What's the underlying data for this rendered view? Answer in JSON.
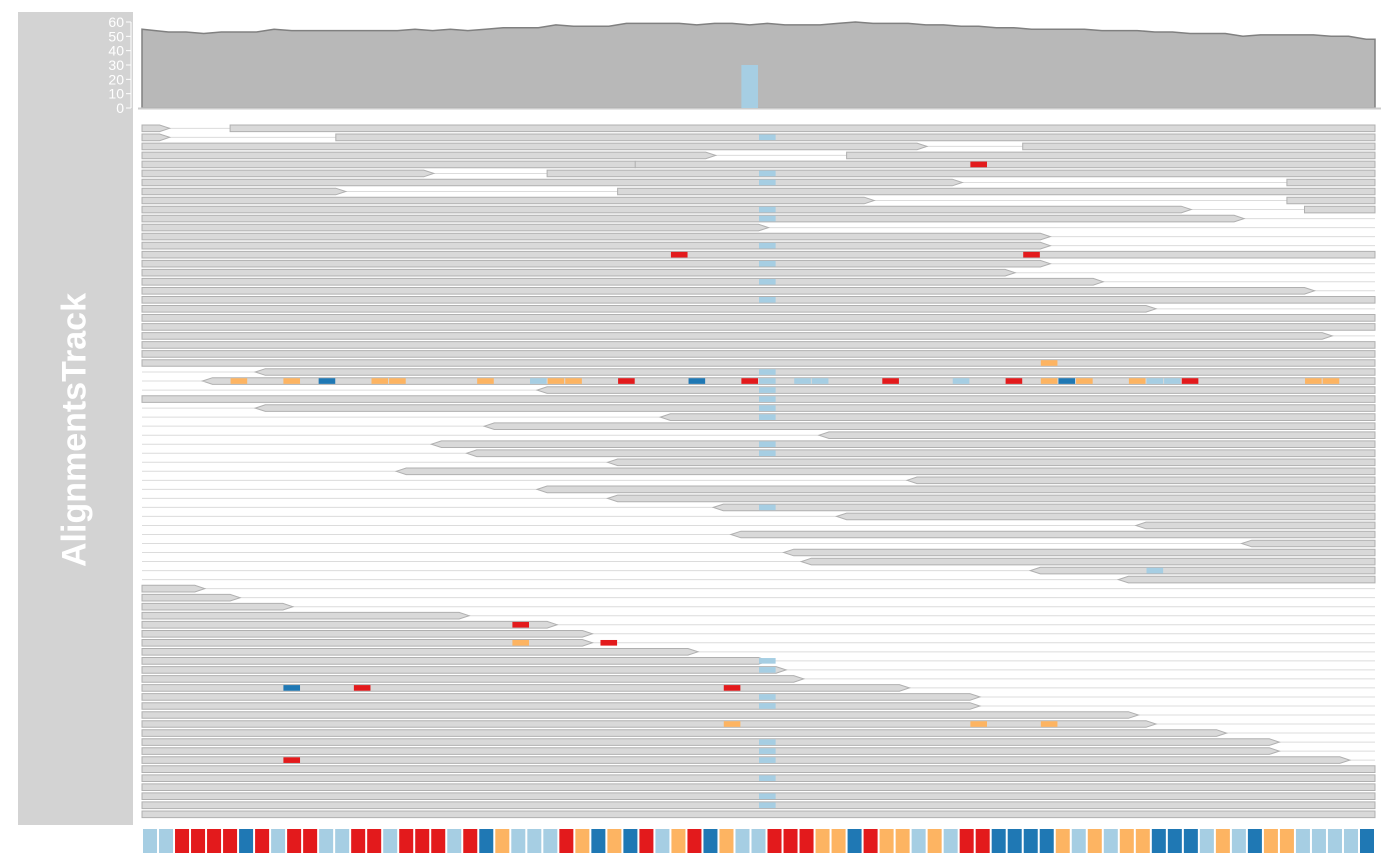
{
  "track": {
    "title": "AlignmentsTrack"
  },
  "colors": {
    "panel": "#d3d3d3",
    "coverage": "#b8b8b8",
    "coverage_line": "#808080",
    "read_fill": "#d9d9d9",
    "read_stroke": "#b0b0b0",
    "A": "#a6cee3",
    "C": "#1f78b4",
    "G": "#fdb462",
    "T": "#e31a1c"
  },
  "chart_data": {
    "type": "area",
    "title": "",
    "xlabel": "",
    "ylabel": "",
    "ylim": [
      0,
      60
    ],
    "yticks": [
      0,
      10,
      20,
      30,
      40,
      50,
      60
    ],
    "positions": 70,
    "coverage": [
      55,
      53,
      53,
      52,
      53,
      53,
      53,
      55,
      54,
      54,
      54,
      54,
      54,
      54,
      54,
      55,
      54,
      55,
      54,
      55,
      56,
      56,
      56,
      58,
      57,
      57,
      57,
      59,
      59,
      59,
      59,
      58,
      59,
      59,
      58,
      59,
      58,
      58,
      58,
      59,
      60,
      59,
      59,
      59,
      58,
      58,
      57,
      57,
      56,
      56,
      55,
      55,
      55,
      55,
      54,
      54,
      54,
      53,
      53,
      52,
      52,
      52,
      50,
      51,
      51,
      51,
      51,
      50,
      50,
      48
    ],
    "mismatch_coverage": [
      {
        "pos": 34,
        "base": "A",
        "value": 30
      }
    ],
    "reference_sequence": "AATTTTCTATTAATTATTTATCGAAATGCGCTAGTCGAATTTGGCTGGAGATTCCCCGAGAGGCCCAGACGGAAAAC",
    "reads": [
      {
        "row": 0,
        "start": 0,
        "end": 1,
        "strand": "+"
      },
      {
        "row": 0,
        "start": 5,
        "end": 70,
        "strand": "+"
      },
      {
        "row": 1,
        "start": 0,
        "end": 1,
        "strand": "+"
      },
      {
        "row": 1,
        "start": 11,
        "end": 70,
        "strand": "+",
        "mm": [
          {
            "pos": 35,
            "base": "A"
          }
        ]
      },
      {
        "row": 2,
        "start": 0,
        "end": 44,
        "strand": "+"
      },
      {
        "row": 2,
        "start": 50,
        "end": 70,
        "strand": "+"
      },
      {
        "row": 3,
        "start": 0,
        "end": 32,
        "strand": "+"
      },
      {
        "row": 3,
        "start": 40,
        "end": 70,
        "strand": "+"
      },
      {
        "row": 4,
        "start": 0,
        "end": 28,
        "strand": "+"
      },
      {
        "row": 4,
        "start": 28,
        "end": 70,
        "strand": "+",
        "mm": [
          {
            "pos": 47,
            "base": "T"
          }
        ]
      },
      {
        "row": 5,
        "start": 0,
        "end": 16,
        "strand": "+"
      },
      {
        "row": 5,
        "start": 23,
        "end": 70,
        "strand": "+",
        "mm": [
          {
            "pos": 35,
            "base": "A"
          }
        ]
      },
      {
        "row": 6,
        "start": 0,
        "end": 46,
        "strand": "+",
        "mm": [
          {
            "pos": 35,
            "base": "A"
          }
        ]
      },
      {
        "row": 6,
        "start": 65,
        "end": 70,
        "strand": "+"
      },
      {
        "row": 7,
        "start": 0,
        "end": 11,
        "strand": "+"
      },
      {
        "row": 7,
        "start": 27,
        "end": 70,
        "strand": "+"
      },
      {
        "row": 8,
        "start": 0,
        "end": 41,
        "strand": "+"
      },
      {
        "row": 8,
        "start": 65,
        "end": 70,
        "strand": "+"
      },
      {
        "row": 9,
        "start": 0,
        "end": 59,
        "strand": "+",
        "mm": [
          {
            "pos": 35,
            "base": "A"
          }
        ]
      },
      {
        "row": 9,
        "start": 66,
        "end": 70,
        "strand": "+"
      },
      {
        "row": 10,
        "start": 0,
        "end": 62,
        "strand": "+",
        "mm": [
          {
            "pos": 35,
            "base": "A"
          }
        ]
      },
      {
        "row": 11,
        "start": 0,
        "end": 35,
        "strand": "+"
      },
      {
        "row": 12,
        "start": 0,
        "end": 51,
        "strand": "+"
      },
      {
        "row": 13,
        "start": 0,
        "end": 51,
        "strand": "+",
        "mm": [
          {
            "pos": 35,
            "base": "A"
          }
        ]
      },
      {
        "row": 14,
        "start": 0,
        "end": 70,
        "strand": "+",
        "mm": [
          {
            "pos": 30,
            "base": "T"
          },
          {
            "pos": 50,
            "base": "T"
          }
        ]
      },
      {
        "row": 15,
        "start": 0,
        "end": 51,
        "strand": "+",
        "mm": [
          {
            "pos": 35,
            "base": "A"
          }
        ]
      },
      {
        "row": 16,
        "start": 0,
        "end": 49,
        "strand": "+"
      },
      {
        "row": 17,
        "start": 0,
        "end": 54,
        "strand": "+",
        "mm": [
          {
            "pos": 35,
            "base": "A"
          }
        ]
      },
      {
        "row": 18,
        "start": 0,
        "end": 66,
        "strand": "+"
      },
      {
        "row": 19,
        "start": 0,
        "end": 70,
        "strand": "+",
        "mm": [
          {
            "pos": 35,
            "base": "A"
          }
        ]
      },
      {
        "row": 20,
        "start": 0,
        "end": 57,
        "strand": "+"
      },
      {
        "row": 21,
        "start": 0,
        "end": 70,
        "strand": "+"
      },
      {
        "row": 22,
        "start": 0,
        "end": 70,
        "strand": "+"
      },
      {
        "row": 23,
        "start": 0,
        "end": 67,
        "strand": "+"
      },
      {
        "row": 24,
        "start": 0,
        "end": 70,
        "strand": "+"
      },
      {
        "row": 25,
        "start": 0,
        "end": 70,
        "strand": "+"
      },
      {
        "row": 26,
        "start": 0,
        "end": 70,
        "strand": "+",
        "mm": [
          {
            "pos": 51,
            "base": "G"
          }
        ]
      },
      {
        "row": 27,
        "start": 7,
        "end": 70,
        "strand": "-",
        "mm": [
          {
            "pos": 35,
            "base": "A"
          }
        ]
      },
      {
        "row": 28,
        "start": 4,
        "end": 70,
        "strand": "-",
        "mm": [
          {
            "pos": 5,
            "base": "G"
          },
          {
            "pos": 8,
            "base": "G"
          },
          {
            "pos": 10,
            "base": "C"
          },
          {
            "pos": 13,
            "base": "G"
          },
          {
            "pos": 14,
            "base": "G"
          },
          {
            "pos": 19,
            "base": "G"
          },
          {
            "pos": 22,
            "base": "A"
          },
          {
            "pos": 23,
            "base": "G"
          },
          {
            "pos": 24,
            "base": "G"
          },
          {
            "pos": 27,
            "base": "T"
          },
          {
            "pos": 31,
            "base": "C"
          },
          {
            "pos": 34,
            "base": "T"
          },
          {
            "pos": 35,
            "base": "A"
          },
          {
            "pos": 37,
            "base": "A"
          },
          {
            "pos": 38,
            "base": "A"
          },
          {
            "pos": 42,
            "base": "T"
          },
          {
            "pos": 46,
            "base": "A"
          },
          {
            "pos": 49,
            "base": "T"
          },
          {
            "pos": 51,
            "base": "G"
          },
          {
            "pos": 52,
            "base": "C"
          },
          {
            "pos": 53,
            "base": "G"
          },
          {
            "pos": 56,
            "base": "G"
          },
          {
            "pos": 57,
            "base": "A"
          },
          {
            "pos": 58,
            "base": "A"
          },
          {
            "pos": 59,
            "base": "T"
          },
          {
            "pos": 66,
            "base": "G"
          },
          {
            "pos": 67,
            "base": "G"
          }
        ]
      },
      {
        "row": 29,
        "start": 23,
        "end": 70,
        "strand": "-",
        "mm": [
          {
            "pos": 35,
            "base": "A"
          }
        ]
      },
      {
        "row": 30,
        "start": 0,
        "end": 70,
        "strand": "+",
        "mm": [
          {
            "pos": 35,
            "base": "A"
          }
        ]
      },
      {
        "row": 31,
        "start": 7,
        "end": 70,
        "strand": "-",
        "mm": [
          {
            "pos": 35,
            "base": "A"
          }
        ]
      },
      {
        "row": 32,
        "start": 30,
        "end": 70,
        "strand": "-",
        "mm": [
          {
            "pos": 35,
            "base": "A"
          }
        ]
      },
      {
        "row": 33,
        "start": 20,
        "end": 70,
        "strand": "-"
      },
      {
        "row": 34,
        "start": 39,
        "end": 70,
        "strand": "-"
      },
      {
        "row": 35,
        "start": 17,
        "end": 70,
        "strand": "-",
        "mm": [
          {
            "pos": 35,
            "base": "A"
          }
        ]
      },
      {
        "row": 36,
        "start": 19,
        "end": 70,
        "strand": "-",
        "mm": [
          {
            "pos": 35,
            "base": "A"
          }
        ]
      },
      {
        "row": 37,
        "start": 27,
        "end": 70,
        "strand": "-"
      },
      {
        "row": 38,
        "start": 15,
        "end": 70,
        "strand": "-"
      },
      {
        "row": 39,
        "start": 44,
        "end": 70,
        "strand": "-"
      },
      {
        "row": 40,
        "start": 23,
        "end": 70,
        "strand": "-"
      },
      {
        "row": 41,
        "start": 27,
        "end": 70,
        "strand": "-"
      },
      {
        "row": 42,
        "start": 33,
        "end": 70,
        "strand": "-",
        "mm": [
          {
            "pos": 35,
            "base": "A"
          }
        ]
      },
      {
        "row": 43,
        "start": 40,
        "end": 70,
        "strand": "-"
      },
      {
        "row": 44,
        "start": 57,
        "end": 70,
        "strand": "-"
      },
      {
        "row": 45,
        "start": 34,
        "end": 70,
        "strand": "-"
      },
      {
        "row": 46,
        "start": 63,
        "end": 70,
        "strand": "-"
      },
      {
        "row": 47,
        "start": 37,
        "end": 70,
        "strand": "-"
      },
      {
        "row": 48,
        "start": 38,
        "end": 70,
        "strand": "-"
      },
      {
        "row": 49,
        "start": 51,
        "end": 70,
        "strand": "-",
        "mm": [
          {
            "pos": 57,
            "base": "A"
          }
        ]
      },
      {
        "row": 50,
        "start": 56,
        "end": 70,
        "strand": "-"
      },
      {
        "row": 51,
        "start": 0,
        "end": 3,
        "strand": "+"
      },
      {
        "row": 52,
        "start": 0,
        "end": 5,
        "strand": "+"
      },
      {
        "row": 53,
        "start": 0,
        "end": 8,
        "strand": "+"
      },
      {
        "row": 54,
        "start": 0,
        "end": 18,
        "strand": "+"
      },
      {
        "row": 55,
        "start": 0,
        "end": 23,
        "strand": "+",
        "mm": [
          {
            "pos": 21,
            "base": "T"
          }
        ]
      },
      {
        "row": 56,
        "start": 0,
        "end": 25,
        "strand": "+"
      },
      {
        "row": 57,
        "start": 0,
        "end": 25,
        "strand": "+",
        "mm": [
          {
            "pos": 21,
            "base": "G"
          },
          {
            "pos": 26,
            "base": "T"
          }
        ]
      },
      {
        "row": 58,
        "start": 0,
        "end": 31,
        "strand": "+"
      },
      {
        "row": 59,
        "start": 0,
        "end": 35,
        "strand": "+",
        "mm": [
          {
            "pos": 35,
            "base": "A"
          }
        ]
      },
      {
        "row": 60,
        "start": 0,
        "end": 36,
        "strand": "+",
        "mm": [
          {
            "pos": 35,
            "base": "A"
          }
        ]
      },
      {
        "row": 61,
        "start": 0,
        "end": 37,
        "strand": "+"
      },
      {
        "row": 62,
        "start": 0,
        "end": 43,
        "strand": "+",
        "mm": [
          {
            "pos": 8,
            "base": "C"
          },
          {
            "pos": 12,
            "base": "T"
          },
          {
            "pos": 33,
            "base": "T"
          }
        ]
      },
      {
        "row": 63,
        "start": 0,
        "end": 47,
        "strand": "+",
        "mm": [
          {
            "pos": 35,
            "base": "A"
          }
        ]
      },
      {
        "row": 64,
        "start": 0,
        "end": 47,
        "strand": "+",
        "mm": [
          {
            "pos": 35,
            "base": "A"
          }
        ]
      },
      {
        "row": 65,
        "start": 0,
        "end": 56,
        "strand": "+"
      },
      {
        "row": 66,
        "start": 0,
        "end": 57,
        "strand": "+",
        "mm": [
          {
            "pos": 33,
            "base": "G"
          },
          {
            "pos": 47,
            "base": "G"
          },
          {
            "pos": 51,
            "base": "G"
          }
        ]
      },
      {
        "row": 67,
        "start": 0,
        "end": 61,
        "strand": "+"
      },
      {
        "row": 68,
        "start": 0,
        "end": 64,
        "strand": "+",
        "mm": [
          {
            "pos": 35,
            "base": "A"
          }
        ]
      },
      {
        "row": 69,
        "start": 0,
        "end": 64,
        "strand": "+",
        "mm": [
          {
            "pos": 35,
            "base": "A"
          }
        ]
      },
      {
        "row": 70,
        "start": 0,
        "end": 68,
        "strand": "+",
        "mm": [
          {
            "pos": 8,
            "base": "T"
          },
          {
            "pos": 35,
            "base": "A"
          }
        ]
      },
      {
        "row": 71,
        "start": 0,
        "end": 70,
        "strand": "+"
      },
      {
        "row": 72,
        "start": 0,
        "end": 70,
        "strand": "+",
        "mm": [
          {
            "pos": 35,
            "base": "A"
          }
        ]
      },
      {
        "row": 73,
        "start": 0,
        "end": 70,
        "strand": "+"
      },
      {
        "row": 74,
        "start": 0,
        "end": 70,
        "strand": "+",
        "mm": [
          {
            "pos": 35,
            "base": "A"
          }
        ]
      },
      {
        "row": 75,
        "start": 0,
        "end": 70,
        "strand": "+",
        "mm": [
          {
            "pos": 35,
            "base": "A"
          }
        ]
      },
      {
        "row": 76,
        "start": 0,
        "end": 70,
        "strand": "+"
      }
    ]
  }
}
